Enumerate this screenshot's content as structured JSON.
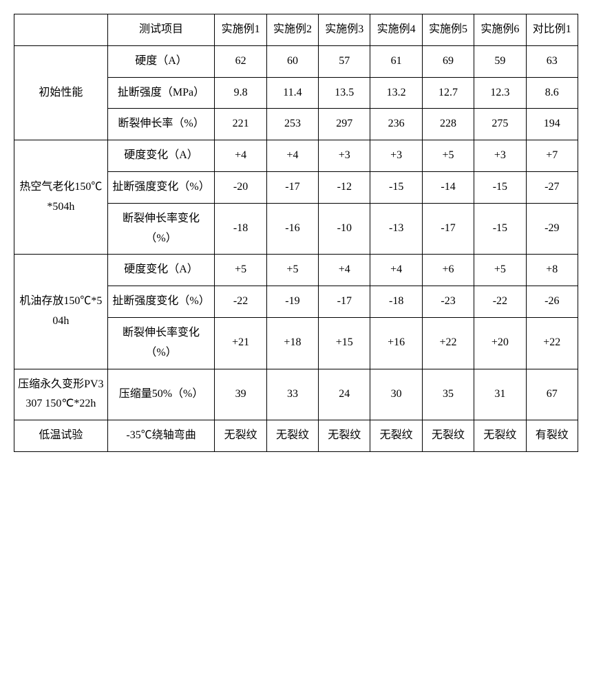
{
  "header": {
    "col1_blank": "",
    "test_item": "测试项目",
    "cols": [
      "实施例1",
      "实施例2",
      "实施例3",
      "实施例4",
      "实施例5",
      "实施例6",
      "对比例1"
    ]
  },
  "groups": [
    {
      "category": "初始性能",
      "rows": [
        {
          "label": "硬度（A）",
          "values": [
            "62",
            "60",
            "57",
            "61",
            "69",
            "59",
            "63"
          ]
        },
        {
          "label": "扯断强度（MPa）",
          "values": [
            "9.8",
            "11.4",
            "13.5",
            "13.2",
            "12.7",
            "12.3",
            "8.6"
          ]
        },
        {
          "label": "断裂伸长率（%）",
          "values": [
            "221",
            "253",
            "297",
            "236",
            "228",
            "275",
            "194"
          ]
        }
      ]
    },
    {
      "category": "热空气老化150℃*504h",
      "rows": [
        {
          "label": "硬度变化（A）",
          "values": [
            "+4",
            "+4",
            "+3",
            "+3",
            "+5",
            "+3",
            "+7"
          ]
        },
        {
          "label": "扯断强度变化（%）",
          "values": [
            "-20",
            "-17",
            "-12",
            "-15",
            "-14",
            "-15",
            "-27"
          ]
        },
        {
          "label": "断裂伸长率变化（%）",
          "values": [
            "-18",
            "-16",
            "-10",
            "-13",
            "-17",
            "-15",
            "-29"
          ]
        }
      ]
    },
    {
      "category": "机油存放150℃*504h",
      "rows": [
        {
          "label": "硬度变化（A）",
          "values": [
            "+5",
            "+5",
            "+4",
            "+4",
            "+6",
            "+5",
            "+8"
          ]
        },
        {
          "label": "扯断强度变化（%）",
          "values": [
            "-22",
            "-19",
            "-17",
            "-18",
            "-23",
            "-22",
            "-26"
          ]
        },
        {
          "label": "断裂伸长率变化（%）",
          "values": [
            "+21",
            "+18",
            "+15",
            "+16",
            "+22",
            "+20",
            "+22"
          ]
        }
      ]
    },
    {
      "category": "压缩永久变形PV3307 150℃*22h",
      "rows": [
        {
          "label": "压缩量50%（%）",
          "values": [
            "39",
            "33",
            "24",
            "30",
            "35",
            "31",
            "67"
          ]
        }
      ]
    },
    {
      "category": "低温试验",
      "rows": [
        {
          "label": "-35℃绕轴弯曲",
          "values": [
            "无裂纹",
            "无裂纹",
            "无裂纹",
            "无裂纹",
            "无裂纹",
            "无裂纹",
            "有裂纹"
          ]
        }
      ]
    }
  ]
}
